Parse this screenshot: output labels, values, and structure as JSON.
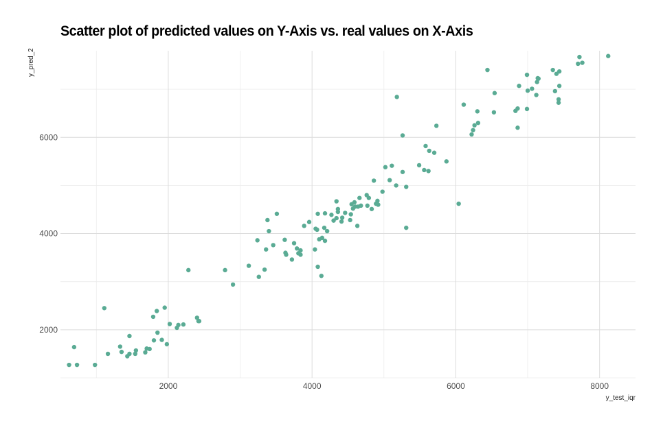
{
  "chart_data": {
    "type": "scatter",
    "title": "Scatter plot of predicted values on Y-Axis vs. real values on X-Axis",
    "xlabel": "y_test_iqr",
    "ylabel": "y_pred_2",
    "xlim": [
      500,
      8500
    ],
    "ylim": [
      1000,
      7800
    ],
    "x_ticks": [
      2000,
      4000,
      6000,
      8000
    ],
    "y_ticks": [
      2000,
      4000,
      6000
    ],
    "grid": true,
    "legend": "none",
    "point_color": "#5aab94",
    "points": [
      [
        620,
        1270
      ],
      [
        690,
        1640
      ],
      [
        730,
        1270
      ],
      [
        980,
        1270
      ],
      [
        1110,
        2450
      ],
      [
        1160,
        1500
      ],
      [
        1330,
        1650
      ],
      [
        1350,
        1540
      ],
      [
        1430,
        1450
      ],
      [
        1460,
        1500
      ],
      [
        1460,
        1870
      ],
      [
        1540,
        1500
      ],
      [
        1550,
        1570
      ],
      [
        1680,
        1530
      ],
      [
        1700,
        1610
      ],
      [
        1740,
        1600
      ],
      [
        1790,
        2270
      ],
      [
        1800,
        1780
      ],
      [
        1840,
        2390
      ],
      [
        1850,
        1940
      ],
      [
        1910,
        1790
      ],
      [
        1950,
        2460
      ],
      [
        1980,
        1700
      ],
      [
        2020,
        2120
      ],
      [
        2120,
        2040
      ],
      [
        2140,
        2100
      ],
      [
        2210,
        2110
      ],
      [
        2280,
        3240
      ],
      [
        2400,
        2250
      ],
      [
        2420,
        2180
      ],
      [
        2430,
        2180
      ],
      [
        2790,
        3240
      ],
      [
        2900,
        2940
      ],
      [
        3120,
        3330
      ],
      [
        3240,
        3860
      ],
      [
        3260,
        3100
      ],
      [
        3340,
        3250
      ],
      [
        3360,
        3670
      ],
      [
        3380,
        4280
      ],
      [
        3400,
        4050
      ],
      [
        3460,
        3760
      ],
      [
        3510,
        4410
      ],
      [
        3620,
        3870
      ],
      [
        3630,
        3600
      ],
      [
        3640,
        3560
      ],
      [
        3720,
        3460
      ],
      [
        3750,
        3800
      ],
      [
        3790,
        3690
      ],
      [
        3810,
        3590
      ],
      [
        3840,
        3560
      ],
      [
        3840,
        3650
      ],
      [
        3890,
        4160
      ],
      [
        3960,
        4240
      ],
      [
        4040,
        3670
      ],
      [
        4050,
        4100
      ],
      [
        4070,
        4080
      ],
      [
        4080,
        3310
      ],
      [
        4080,
        4410
      ],
      [
        4100,
        3880
      ],
      [
        4130,
        3120
      ],
      [
        4140,
        3910
      ],
      [
        4170,
        4120
      ],
      [
        4180,
        3850
      ],
      [
        4180,
        4420
      ],
      [
        4210,
        4050
      ],
      [
        4270,
        4390
      ],
      [
        4300,
        4270
      ],
      [
        4340,
        4320
      ],
      [
        4340,
        4670
      ],
      [
        4360,
        4450
      ],
      [
        4360,
        4510
      ],
      [
        4410,
        4250
      ],
      [
        4420,
        4330
      ],
      [
        4460,
        4430
      ],
      [
        4530,
        4280
      ],
      [
        4540,
        4400
      ],
      [
        4550,
        4610
      ],
      [
        4570,
        4520
      ],
      [
        4590,
        4650
      ],
      [
        4600,
        4560
      ],
      [
        4630,
        4160
      ],
      [
        4640,
        4560
      ],
      [
        4660,
        4740
      ],
      [
        4680,
        4580
      ],
      [
        4760,
        4800
      ],
      [
        4770,
        4580
      ],
      [
        4790,
        4740
      ],
      [
        4830,
        4510
      ],
      [
        4860,
        5100
      ],
      [
        4890,
        4620
      ],
      [
        4910,
        4680
      ],
      [
        4920,
        4600
      ],
      [
        4980,
        4870
      ],
      [
        5020,
        5380
      ],
      [
        5080,
        5110
      ],
      [
        5110,
        5410
      ],
      [
        5170,
        5000
      ],
      [
        5180,
        6840
      ],
      [
        5260,
        6040
      ],
      [
        5260,
        5280
      ],
      [
        5310,
        4120
      ],
      [
        5310,
        4970
      ],
      [
        5490,
        5420
      ],
      [
        5560,
        5320
      ],
      [
        5580,
        5820
      ],
      [
        5620,
        5300
      ],
      [
        5630,
        5720
      ],
      [
        5700,
        5680
      ],
      [
        5730,
        6240
      ],
      [
        5870,
        5500
      ],
      [
        6040,
        4620
      ],
      [
        6110,
        6680
      ],
      [
        6220,
        6060
      ],
      [
        6240,
        6150
      ],
      [
        6260,
        6250
      ],
      [
        6300,
        6540
      ],
      [
        6310,
        6300
      ],
      [
        6440,
        7400
      ],
      [
        6530,
        6520
      ],
      [
        6540,
        6920
      ],
      [
        6830,
        6550
      ],
      [
        6860,
        6600
      ],
      [
        6860,
        6200
      ],
      [
        6880,
        7070
      ],
      [
        6990,
        7300
      ],
      [
        6990,
        6590
      ],
      [
        7000,
        6970
      ],
      [
        7060,
        7010
      ],
      [
        7120,
        6880
      ],
      [
        7130,
        7150
      ],
      [
        7140,
        7230
      ],
      [
        7150,
        7220
      ],
      [
        7350,
        7400
      ],
      [
        7380,
        6960
      ],
      [
        7400,
        7320
      ],
      [
        7430,
        6720
      ],
      [
        7430,
        6790
      ],
      [
        7440,
        7370
      ],
      [
        7440,
        7070
      ],
      [
        7700,
        7530
      ],
      [
        7720,
        7670
      ],
      [
        7760,
        7550
      ],
      [
        8120,
        7690
      ]
    ]
  }
}
